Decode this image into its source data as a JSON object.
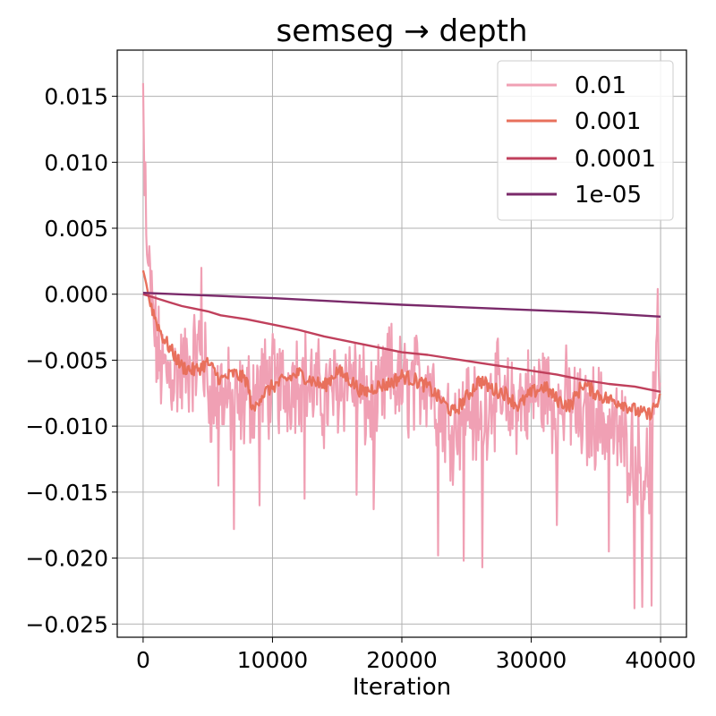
{
  "chart_data": {
    "type": "line",
    "title": "semseg → depth",
    "xlabel": "Iteration",
    "ylabel": "",
    "xlim": [
      -2000,
      42000
    ],
    "ylim": [
      -0.026,
      0.0185
    ],
    "x_ticks": [
      0,
      10000,
      20000,
      30000,
      40000
    ],
    "x_tick_labels": [
      "0",
      "10000",
      "20000",
      "30000",
      "40000"
    ],
    "y_ticks": [
      -0.025,
      -0.02,
      -0.015,
      -0.01,
      -0.005,
      0.0,
      0.005,
      0.01,
      0.015
    ],
    "y_tick_labels": [
      "−0.025",
      "−0.020",
      "−0.015",
      "−0.010",
      "−0.005",
      "0.000",
      "0.005",
      "0.010",
      "0.015"
    ],
    "grid": true,
    "legend_position": "top-right",
    "series": [
      {
        "name": "0.01",
        "color": "#f0a0b4",
        "noisy": true,
        "x": [
          0,
          100,
          300,
          600,
          1000,
          1500,
          2000,
          3000,
          4000,
          4500,
          5000,
          5500,
          6000,
          7000,
          8000,
          9000,
          10000,
          11000,
          12000,
          13000,
          14000,
          15000,
          16000,
          17000,
          18000,
          19000,
          20000,
          21000,
          22000,
          23000,
          24000,
          25000,
          26000,
          27000,
          28000,
          29000,
          30000,
          31000,
          32000,
          33000,
          34000,
          35000,
          36000,
          37000,
          38000,
          39000,
          40000
        ],
        "y": [
          0.016,
          0.008,
          0.003,
          0.0,
          -0.004,
          -0.006,
          -0.006,
          -0.006,
          -0.005,
          -0.004,
          -0.007,
          -0.008,
          -0.007,
          -0.009,
          -0.008,
          -0.007,
          -0.007,
          -0.007,
          -0.006,
          -0.007,
          -0.008,
          -0.007,
          -0.006,
          -0.008,
          -0.009,
          -0.006,
          -0.007,
          -0.007,
          -0.006,
          -0.009,
          -0.01,
          -0.008,
          -0.01,
          -0.007,
          -0.009,
          -0.008,
          -0.008,
          -0.007,
          -0.009,
          -0.008,
          -0.01,
          -0.009,
          -0.01,
          -0.011,
          -0.012,
          -0.014,
          -0.004
        ],
        "x_extremes": [
          200,
          4500,
          5800,
          7000,
          9000,
          12500,
          16500,
          17800,
          22800,
          24800,
          26200,
          32000,
          36000,
          38000,
          38600,
          39300,
          39800
        ],
        "y_extremes": [
          0.01,
          0.002,
          -0.0145,
          -0.0178,
          -0.016,
          -0.0155,
          -0.0152,
          -0.0163,
          -0.0198,
          -0.0202,
          -0.0207,
          -0.0175,
          -0.0195,
          -0.0238,
          -0.0237,
          -0.0236,
          0.0004
        ]
      },
      {
        "name": "0.001",
        "color": "#e8705c",
        "noisy": true,
        "x": [
          0,
          200,
          500,
          1000,
          1500,
          2000,
          3000,
          4000,
          5000,
          6000,
          7000,
          8000,
          8500,
          9000,
          10000,
          11000,
          12000,
          13000,
          14000,
          15000,
          16000,
          17000,
          18000,
          19000,
          20000,
          21000,
          22000,
          23000,
          24000,
          25000,
          26000,
          27000,
          28000,
          29000,
          30000,
          31000,
          32000,
          33000,
          34000,
          35000,
          36000,
          37000,
          38000,
          39000,
          40000
        ],
        "y": [
          0.0018,
          0.001,
          -0.0005,
          -0.002,
          -0.0032,
          -0.004,
          -0.0055,
          -0.0058,
          -0.0052,
          -0.0065,
          -0.006,
          -0.0065,
          -0.009,
          -0.0078,
          -0.007,
          -0.0065,
          -0.006,
          -0.0065,
          -0.007,
          -0.0058,
          -0.0065,
          -0.0075,
          -0.007,
          -0.0068,
          -0.0062,
          -0.0065,
          -0.007,
          -0.008,
          -0.009,
          -0.0078,
          -0.0065,
          -0.0072,
          -0.0075,
          -0.0085,
          -0.0075,
          -0.007,
          -0.008,
          -0.0085,
          -0.0068,
          -0.0075,
          -0.008,
          -0.0082,
          -0.0088,
          -0.0092,
          -0.008
        ]
      },
      {
        "name": "0.0001",
        "color": "#c0405c",
        "noisy": false,
        "x": [
          0,
          1000,
          2000,
          3000,
          4000,
          5000,
          6000,
          8000,
          10000,
          12000,
          14000,
          16000,
          18000,
          20000,
          22000,
          24000,
          26000,
          28000,
          30000,
          32000,
          34000,
          36000,
          38000,
          40000
        ],
        "y": [
          0.0,
          -0.0003,
          -0.0006,
          -0.0009,
          -0.0011,
          -0.0013,
          -0.0016,
          -0.0019,
          -0.0023,
          -0.0027,
          -0.0032,
          -0.0036,
          -0.004,
          -0.0044,
          -0.0046,
          -0.0049,
          -0.0052,
          -0.0055,
          -0.0058,
          -0.0061,
          -0.0065,
          -0.0068,
          -0.007,
          -0.0074
        ]
      },
      {
        "name": "1e-05",
        "color": "#7a2a6a",
        "noisy": false,
        "x": [
          0,
          10000,
          20000,
          30000,
          35000,
          40000
        ],
        "y": [
          0.0001,
          -0.0003,
          -0.0008,
          -0.0012,
          -0.0014,
          -0.0017
        ]
      }
    ]
  }
}
